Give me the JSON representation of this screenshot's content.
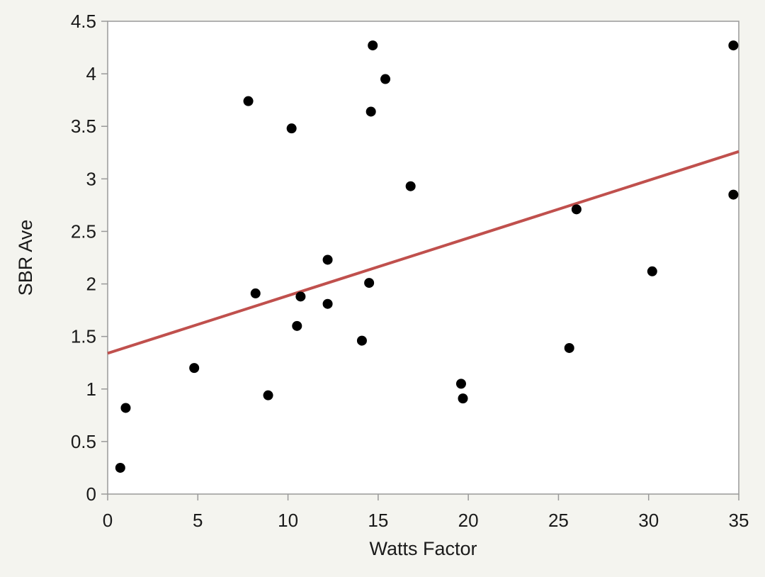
{
  "chart_data": {
    "type": "scatter",
    "title": "",
    "xlabel": "Watts Factor",
    "ylabel": "SBR Ave",
    "xlim": [
      0,
      35
    ],
    "ylim": [
      0,
      4.5
    ],
    "xticks": [
      0,
      5,
      10,
      15,
      20,
      25,
      30,
      35
    ],
    "xtick_labels": [
      "0",
      "5",
      "10",
      "15",
      "20",
      "25",
      "30",
      "35"
    ],
    "yticks": [
      0,
      0.5,
      1,
      1.5,
      2,
      2.5,
      3,
      3.5,
      4,
      4.5
    ],
    "ytick_labels": [
      "0",
      "0.5",
      "1",
      "1.5",
      "2",
      "2.5",
      "3",
      "3.5",
      "4",
      "4.5"
    ],
    "grid": false,
    "legend": "none",
    "series": [
      {
        "points": [
          {
            "x": 0.7,
            "y": 0.25
          },
          {
            "x": 1.0,
            "y": 0.82
          },
          {
            "x": 4.8,
            "y": 1.2
          },
          {
            "x": 7.8,
            "y": 3.74
          },
          {
            "x": 8.2,
            "y": 1.91
          },
          {
            "x": 8.9,
            "y": 0.94
          },
          {
            "x": 10.2,
            "y": 3.48
          },
          {
            "x": 10.5,
            "y": 1.6
          },
          {
            "x": 10.7,
            "y": 1.88
          },
          {
            "x": 12.2,
            "y": 2.23
          },
          {
            "x": 12.2,
            "y": 1.81
          },
          {
            "x": 14.1,
            "y": 1.46
          },
          {
            "x": 14.5,
            "y": 2.01
          },
          {
            "x": 14.6,
            "y": 3.64
          },
          {
            "x": 14.7,
            "y": 4.27
          },
          {
            "x": 15.4,
            "y": 3.95
          },
          {
            "x": 16.8,
            "y": 2.93
          },
          {
            "x": 19.6,
            "y": 1.05
          },
          {
            "x": 19.7,
            "y": 0.91
          },
          {
            "x": 25.6,
            "y": 1.39
          },
          {
            "x": 26.0,
            "y": 2.71
          },
          {
            "x": 30.2,
            "y": 2.12
          },
          {
            "x": 34.7,
            "y": 4.27
          },
          {
            "x": 34.7,
            "y": 2.85
          }
        ],
        "color": "#000000"
      }
    ],
    "fit_line": {
      "type": "linear",
      "x": [
        0,
        35
      ],
      "y": [
        1.34,
        3.26
      ],
      "color": "#c0504d"
    }
  },
  "colors": {
    "background": "#f4f4ef",
    "plot_area": "#ffffff",
    "axis": "#999999",
    "point": "#000000",
    "fit_line": "#c0504d"
  }
}
